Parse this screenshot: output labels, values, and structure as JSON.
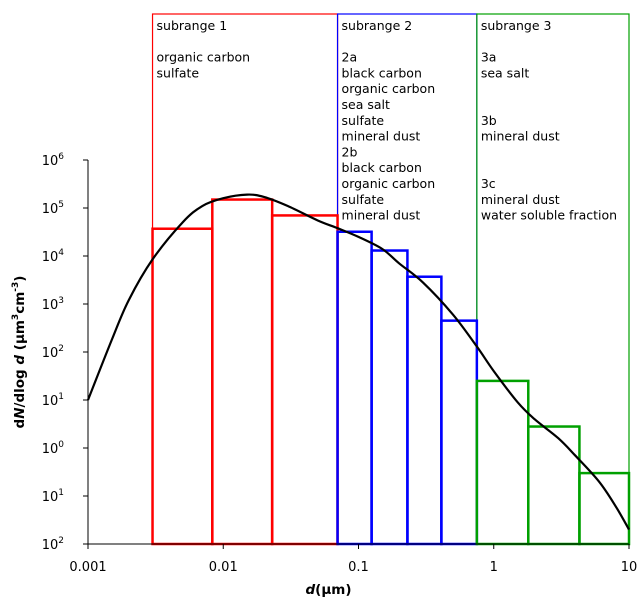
{
  "chart_data": {
    "type": "bar",
    "xscale": "log",
    "yscale": "log",
    "xlim": [
      0.001,
      10
    ],
    "ylim": [
      0.01,
      1000000
    ],
    "xlabel": {
      "italic": "d",
      "rest": "(µm)"
    },
    "ylabel": {
      "pre": "dN",
      "mid": "/dlog ",
      "ital": "d",
      "rest": " (µm",
      "u1": "3",
      "mid2": "cm",
      "u2": "-3",
      "end": ")"
    },
    "x_ticks": [
      {
        "value": 0.001,
        "label": "0.001"
      },
      {
        "value": 0.01,
        "label": "0.01"
      },
      {
        "value": 0.1,
        "label": "0.1"
      },
      {
        "value": 1,
        "label": "1"
      },
      {
        "value": 10,
        "label": "10"
      }
    ],
    "y_ticks": [
      {
        "value": 0.01,
        "base": "10",
        "exp": "2"
      },
      {
        "value": 0.1,
        "base": "10",
        "exp": "1"
      },
      {
        "value": 1,
        "base": "10",
        "exp": "0"
      },
      {
        "value": 10,
        "base": "10",
        "exp": "1"
      },
      {
        "value": 100,
        "base": "10",
        "exp": "2"
      },
      {
        "value": 1000,
        "base": "10",
        "exp": "3"
      },
      {
        "value": 10000,
        "base": "10",
        "exp": "4"
      },
      {
        "value": 100000,
        "base": "10",
        "exp": "5"
      },
      {
        "value": 1000000,
        "base": "10",
        "exp": "6"
      }
    ],
    "subranges": [
      {
        "title": "subrange 1",
        "x_range": [
          0.003,
          0.07
        ],
        "color": "#ff0000",
        "lines": [
          "",
          "organic carbon",
          "sulfate"
        ]
      },
      {
        "title": "subrange 2",
        "x_range": [
          0.07,
          0.75
        ],
        "color": "#0000ff",
        "lines": [
          "",
          "2a",
          "black carbon",
          "organic carbon",
          "sea salt",
          "sulfate",
          "mineral dust",
          "2b",
          "black carbon",
          "organic carbon",
          "sulfate",
          "mineral dust"
        ]
      },
      {
        "title": "subrange 3",
        "x_range": [
          0.75,
          10
        ],
        "color": "#00a000",
        "lines": [
          "",
          "3a",
          "sea salt",
          "",
          "",
          "3b",
          "mineral dust",
          "",
          "",
          "3c",
          "mineral dust",
          "water soluble fraction"
        ]
      }
    ],
    "series": [
      {
        "color": "#ff0000",
        "bins": [
          {
            "x0": 0.003,
            "x1": 0.0083,
            "value": 37000
          },
          {
            "x0": 0.0083,
            "x1": 0.023,
            "value": 150000
          },
          {
            "x0": 0.023,
            "x1": 0.07,
            "value": 70000
          }
        ]
      },
      {
        "color": "#0000ff",
        "bins": [
          {
            "x0": 0.07,
            "x1": 0.125,
            "value": 32000
          },
          {
            "x0": 0.125,
            "x1": 0.23,
            "value": 13000
          },
          {
            "x0": 0.23,
            "x1": 0.41,
            "value": 3700
          },
          {
            "x0": 0.41,
            "x1": 0.75,
            "value": 450
          }
        ]
      },
      {
        "color": "#00a000",
        "bins": [
          {
            "x0": 0.75,
            "x1": 1.8,
            "value": 25
          },
          {
            "x0": 1.8,
            "x1": 4.3,
            "value": 2.8
          },
          {
            "x0": 4.3,
            "x1": 10,
            "value": 0.3
          }
        ]
      }
    ],
    "curve": {
      "color": "#000000",
      "x": [
        0.001,
        0.0015,
        0.002,
        0.003,
        0.005,
        0.007,
        0.01,
        0.015,
        0.02,
        0.03,
        0.05,
        0.07,
        0.1,
        0.15,
        0.2,
        0.3,
        0.5,
        0.75,
        1,
        1.5,
        2,
        3,
        4,
        6,
        8,
        10
      ],
      "y": [
        10,
        180,
        1200,
        8500,
        50000,
        110000,
        160000,
        190000,
        170000,
        110000,
        55000,
        38000,
        25000,
        14000,
        7000,
        2800,
        600,
        130,
        40,
        9,
        4,
        1.6,
        0.7,
        0.2,
        0.06,
        0.02
      ]
    },
    "grid": false
  }
}
